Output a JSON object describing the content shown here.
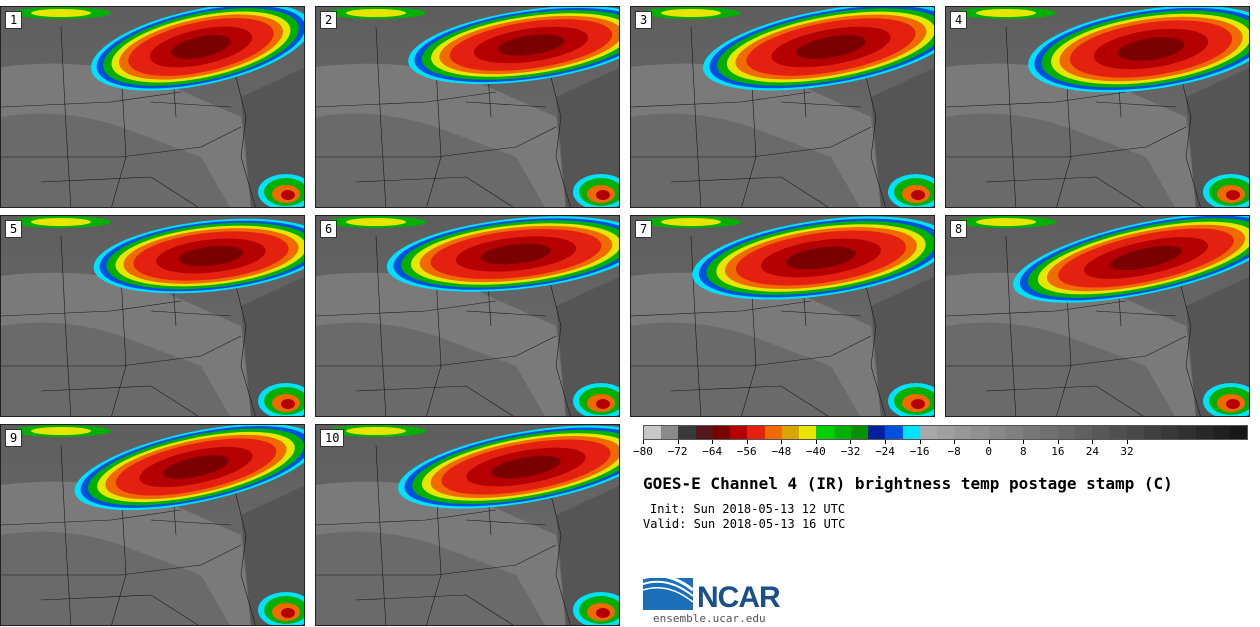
{
  "panels": [
    {
      "label": "1",
      "storm": "0"
    },
    {
      "label": "2",
      "storm": "1"
    },
    {
      "label": "3",
      "storm": "2"
    },
    {
      "label": "4",
      "storm": "3"
    },
    {
      "label": "5",
      "storm": "4"
    },
    {
      "label": "6",
      "storm": "5"
    },
    {
      "label": "7",
      "storm": "6"
    },
    {
      "label": "8",
      "storm": "7"
    },
    {
      "label": "9",
      "storm": "8"
    },
    {
      "label": "10",
      "storm": "9"
    }
  ],
  "colorbar": {
    "colors": [
      "#c8c8c8",
      "#8a8a8a",
      "#3a3a3a",
      "#551818",
      "#7a0000",
      "#b40000",
      "#e42010",
      "#f06a00",
      "#d7a700",
      "#e6e600",
      "#00d000",
      "#00b000",
      "#009000",
      "#0020a0",
      "#0050e0",
      "#00e0ff",
      "#a8a8a8",
      "#a0a0a0",
      "#989898",
      "#909090",
      "#888888",
      "#808080",
      "#787878",
      "#707070",
      "#686868",
      "#606060",
      "#585858",
      "#505050",
      "#484848",
      "#404040",
      "#383838",
      "#303030",
      "#282828",
      "#202020",
      "#181818"
    ],
    "ticks": [
      "−80",
      "−72",
      "−64",
      "−56",
      "−48",
      "−40",
      "−32",
      "−24",
      "−16",
      "−8",
      "0",
      "8",
      "16",
      "24",
      "32"
    ]
  },
  "title": "GOES-E Channel 4 (IR) brightness temp postage stamp (C)",
  "init": "Init: Sun 2018-05-13 12 UTC",
  "valid": "Valid: Sun 2018-05-13 16 UTC",
  "logo": {
    "name": "NCAR",
    "url": "ensemble.ucar.edu"
  }
}
